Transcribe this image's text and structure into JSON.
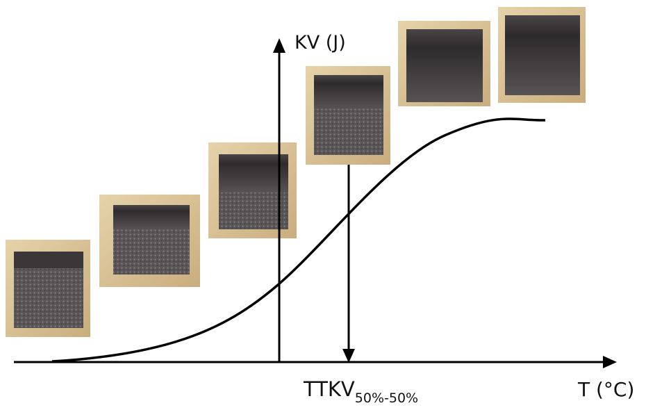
{
  "axes": {
    "y_label": "KV (J)",
    "x_label": "T (°C)"
  },
  "marker": {
    "label": "TTKV",
    "subscript": "50%-50%"
  }
}
